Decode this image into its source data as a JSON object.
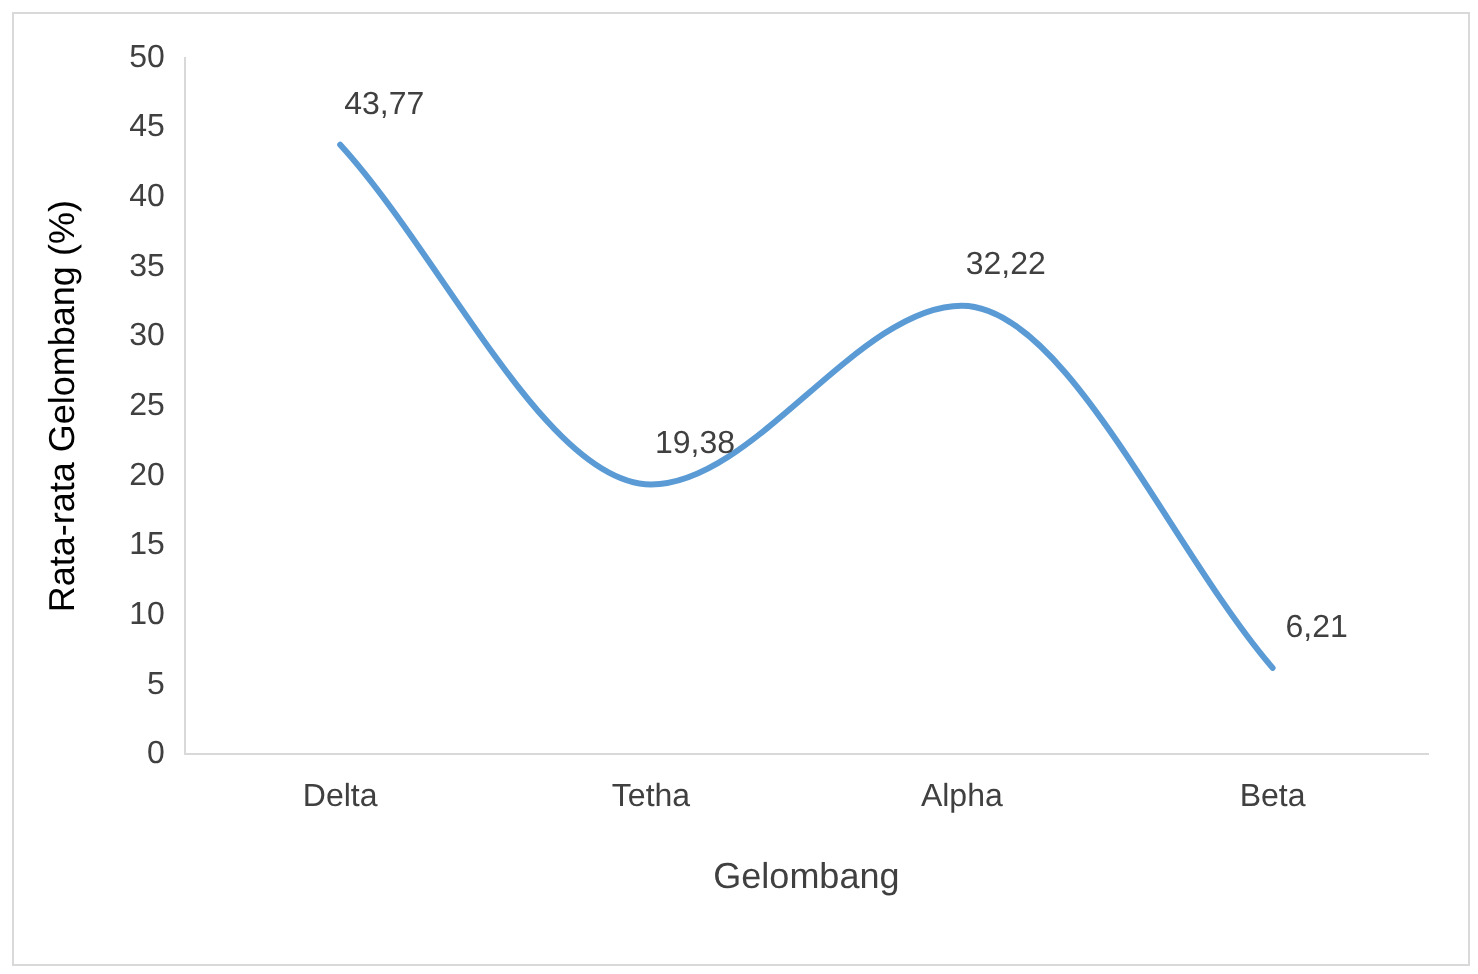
{
  "chart_data": {
    "type": "line",
    "xlabel": "Gelombang",
    "ylabel": "Rata-rata Gelombang (%)",
    "categories": [
      "Delta",
      "Tetha",
      "Alpha",
      "Beta"
    ],
    "series": [
      {
        "color": "#5b9bd5",
        "values": [
          43.77,
          19.38,
          32.22,
          6.21
        ],
        "value_labels": [
          "43,77",
          "19,38",
          "32,22",
          "6,21"
        ]
      }
    ],
    "ylim": [
      0,
      50
    ],
    "yticks": [
      0,
      5,
      10,
      15,
      20,
      25,
      30,
      35,
      40,
      45,
      50
    ],
    "grid": false,
    "legend": false,
    "marker": "none",
    "line_style": "solid"
  }
}
